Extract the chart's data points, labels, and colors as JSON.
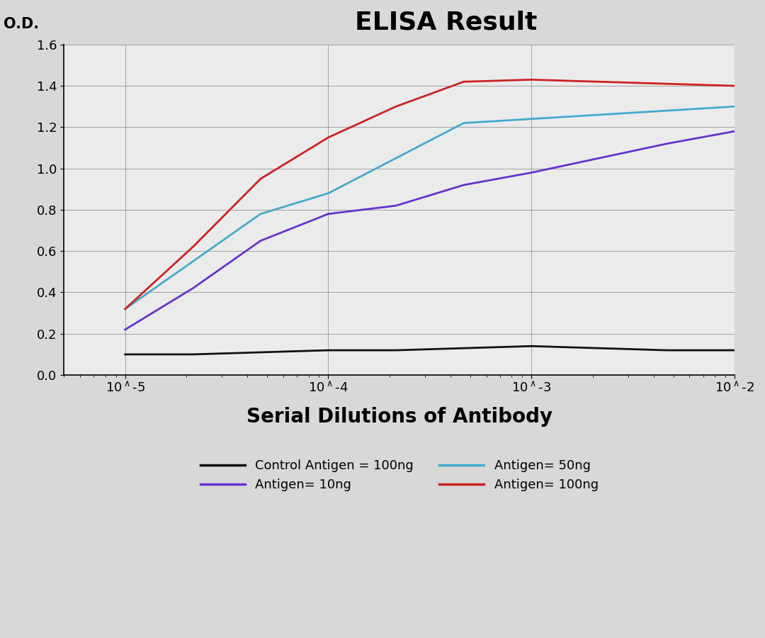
{
  "title": "ELISA Result",
  "ylabel": "O.D.",
  "xlabel": "Serial Dilutions of Antibody",
  "background_color": "#e8e8e8",
  "plot_bg_color": "#f0f0f0",
  "xlim_log": [
    -2,
    -5
  ],
  "ylim": [
    0,
    1.6
  ],
  "yticks": [
    0,
    0.2,
    0.4,
    0.6,
    0.8,
    1.0,
    1.2,
    1.4,
    1.6
  ],
  "xtick_labels": [
    "10^-2",
    "10^-3",
    "10^-4",
    "10^-5"
  ],
  "x_positions": [
    0.01,
    0.001,
    0.0001,
    1e-05
  ],
  "series": [
    {
      "label": "Control Antigen = 100ng",
      "color": "#111111",
      "linewidth": 2.0,
      "y": [
        0.12,
        0.12,
        0.13,
        0.14,
        0.13,
        0.12,
        0.12,
        0.11,
        0.1,
        0.1
      ]
    },
    {
      "label": "Antigen= 10ng",
      "color": "#6633cc",
      "linewidth": 2.0,
      "y": [
        1.18,
        1.12,
        1.05,
        0.98,
        0.92,
        0.82,
        0.78,
        0.65,
        0.42,
        0.22
      ]
    },
    {
      "label": "Antigen= 50ng",
      "color": "#44aacc",
      "linewidth": 2.0,
      "y": [
        1.3,
        1.28,
        1.26,
        1.24,
        1.22,
        1.05,
        0.88,
        0.78,
        0.55,
        0.32
      ]
    },
    {
      "label": "Antigen= 100ng",
      "color": "#cc2222",
      "linewidth": 2.0,
      "y": [
        1.4,
        1.41,
        1.42,
        1.43,
        1.42,
        1.3,
        1.15,
        0.95,
        0.62,
        0.32
      ]
    }
  ],
  "legend_items": [
    {
      "label": "Control Antigen = 100ng",
      "color": "#111111"
    },
    {
      "label": "Antigen= 10ng",
      "color": "#6633cc"
    },
    {
      "label": "Antigen= 50ng",
      "color": "#44aacc"
    },
    {
      "label": "Antigen= 100ng",
      "color": "#cc2222"
    }
  ]
}
